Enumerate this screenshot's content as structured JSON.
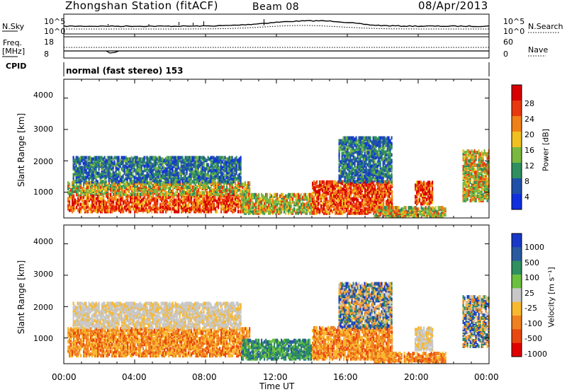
{
  "header": {
    "station_title": "Zhongshan Station (fitACF)",
    "beam": "Beam 08",
    "date": "08/Apr/2013"
  },
  "sky_panel": {
    "left_label": "N.Sky",
    "right_label": "N.Search",
    "left_ticks": [
      "10^5",
      "10^0"
    ],
    "right_ticks": [
      "10^5",
      "10^0"
    ]
  },
  "freq_panel": {
    "left_label": "Freq.",
    "left_unit": "[MHz]",
    "right_label": "Nave",
    "left_ticks": [
      "18",
      "8"
    ],
    "right_ticks": [
      "60",
      "0"
    ]
  },
  "cpid": {
    "label": "CPID",
    "mode_text": "normal (fast stereo) 153"
  },
  "chart_data": [
    {
      "type": "heatmap",
      "variable": "Power",
      "ylabel": "Slant Range [km]",
      "xlabel": "Time UT",
      "y_ticks": [
        "1000",
        "2000",
        "3000",
        "4000"
      ],
      "ylim": [
        180,
        4600
      ],
      "xlim": [
        "00:00",
        "24:00"
      ],
      "colorbar": {
        "label": "Power [dB]",
        "tick_labels": [
          "4",
          "8",
          "12",
          "16",
          "20",
          "24",
          "28"
        ],
        "colors": [
          "#1030e0",
          "#2050a8",
          "#2f8f5f",
          "#7ab840",
          "#f0c020",
          "#f08018",
          "#e83810",
          "#d80000"
        ]
      },
      "regions": [
        {
          "t": [
            0.2,
            10.5
          ],
          "r": [
            350,
            900
          ],
          "level": "high"
        },
        {
          "t": [
            0.2,
            10.5
          ],
          "r": [
            900,
            1300
          ],
          "level": "mid"
        },
        {
          "t": [
            0.5,
            10.0
          ],
          "r": [
            1300,
            2100
          ],
          "level": "low"
        },
        {
          "t": [
            10.0,
            14.0
          ],
          "r": [
            300,
            900
          ],
          "level": "mid"
        },
        {
          "t": [
            14.0,
            18.5
          ],
          "r": [
            300,
            1300
          ],
          "level": "high"
        },
        {
          "t": [
            15.5,
            18.5
          ],
          "r": [
            1300,
            2700
          ],
          "level": "low"
        },
        {
          "t": [
            17.5,
            21.5
          ],
          "r": [
            200,
            500
          ],
          "level": "mid"
        },
        {
          "t": [
            19.8,
            20.8
          ],
          "r": [
            600,
            1300
          ],
          "level": "high"
        },
        {
          "t": [
            22.5,
            24.0
          ],
          "r": [
            700,
            2300
          ],
          "level": "mid"
        }
      ]
    },
    {
      "type": "heatmap",
      "variable": "Velocity",
      "ylabel": "Slant Range [km]",
      "xlabel": "Time UT",
      "y_ticks": [
        "1000",
        "2000",
        "3000",
        "4000"
      ],
      "ylim": [
        180,
        4600
      ],
      "xlim": [
        "00:00",
        "24:00"
      ],
      "colorbar": {
        "label": "Velocity [m s⁻¹]",
        "tick_labels": [
          "1000",
          "500",
          "100",
          "25",
          "-25",
          "-100",
          "-500",
          "-1000"
        ],
        "colors": [
          "#1838c8",
          "#2a5aa0",
          "#2f8f5f",
          "#6cc040",
          "#c8c8c8",
          "#f8b830",
          "#f08020",
          "#e84810",
          "#e00000"
        ]
      },
      "regions": [
        {
          "t": [
            0.2,
            10.5
          ],
          "r": [
            400,
            1300
          ],
          "level": "neg"
        },
        {
          "t": [
            0.5,
            10.0
          ],
          "r": [
            1300,
            2100
          ],
          "level": "zero"
        },
        {
          "t": [
            10.0,
            14.0
          ],
          "r": [
            300,
            900
          ],
          "level": "pos"
        },
        {
          "t": [
            14.0,
            18.5
          ],
          "r": [
            300,
            1300
          ],
          "level": "neg"
        },
        {
          "t": [
            15.5,
            18.5
          ],
          "r": [
            1300,
            2700
          ],
          "level": "mixed"
        },
        {
          "t": [
            17.5,
            21.5
          ],
          "r": [
            200,
            500
          ],
          "level": "neg"
        },
        {
          "t": [
            19.8,
            20.8
          ],
          "r": [
            600,
            1300
          ],
          "level": "zero"
        },
        {
          "t": [
            22.5,
            24.0
          ],
          "r": [
            700,
            2300
          ],
          "level": "mixed"
        }
      ]
    }
  ],
  "x_axis": {
    "tick_labels": [
      "00:00",
      "04:00",
      "08:00",
      "12:00",
      "16:00",
      "20:00",
      "00:00"
    ],
    "label": "Time UT"
  }
}
